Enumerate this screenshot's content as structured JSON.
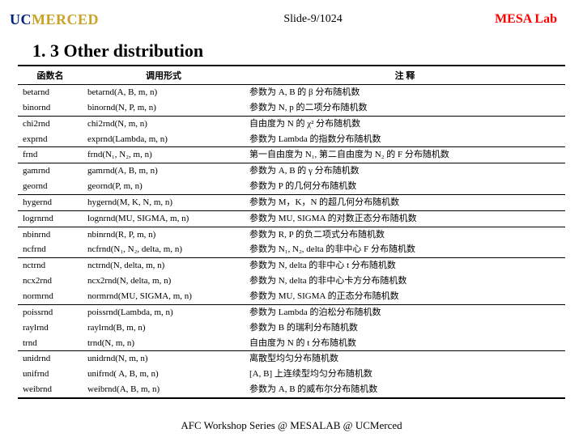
{
  "header": {
    "logo_prefix": "UC",
    "logo_suffix": "MERCED",
    "slide_counter": "Slide-9/1024",
    "lab_label": "MESA Lab"
  },
  "title": "1. 3 Other distribution",
  "table": {
    "headers": [
      "函数名",
      "调用形式",
      "注    释"
    ],
    "rows": [
      {
        "fn": "betarnd",
        "call": "betarnd(A, B, m, n)",
        "note": "参数为 A, B 的 β 分布随机数"
      },
      {
        "fn": "binornd",
        "call": "binornd(N, P, m, n)",
        "note": "参数为 N, p 的二项分布随机数",
        "div": true
      },
      {
        "fn": "chi2rnd",
        "call": "chi2rnd(N, m, n)",
        "note": "自由度为 N 的 χ² 分布随机数"
      },
      {
        "fn": "exprnd",
        "call": "exprnd(Lambda, m, n)",
        "note": "参数为 Lambda 的指数分布随机数",
        "div": true
      },
      {
        "fn": "frnd",
        "call": "frnd(N₁, N₂, m, n)",
        "note": "第一自由度为 N₁, 第二自由度为 N₂ 的 F 分布随机数",
        "div": true
      },
      {
        "fn": "gamrnd",
        "call": "gamrnd(A, B, m, n)",
        "note": "参数为 A, B 的 γ 分布随机数"
      },
      {
        "fn": "geornd",
        "call": "geornd(P, m, n)",
        "note": "参数为 P 的几何分布随机数",
        "div": true
      },
      {
        "fn": "hygernd",
        "call": "hygernd(M, K, N, m, n)",
        "note": "参数为 M，K，N 的超几何分布随机数",
        "div": true
      },
      {
        "fn": "logrnrnd",
        "call": "lognrnd(MU, SIGMA, m, n)",
        "note": "参数为 MU, SIGMA 的对数正态分布随机数",
        "div": true
      },
      {
        "fn": "nbinrnd",
        "call": "nbinrnd(R, P, m, n)",
        "note": "参数为 R, P 的负二项式分布随机数"
      },
      {
        "fn": "ncfrnd",
        "call": "ncfrnd(N₁, N₂, delta, m, n)",
        "note": "参数为 N₁, N₂, delta 的非中心 F 分布随机数",
        "div": true
      },
      {
        "fn": "nctrnd",
        "call": "nctrnd(N, delta, m, n)",
        "note": "参数为 N, delta 的非中心 t 分布随机数"
      },
      {
        "fn": "ncx2rnd",
        "call": "ncx2rnd(N, delta, m, n)",
        "note": "参数为 N, delta 的非中心卡方分布随机数"
      },
      {
        "fn": "normrnd",
        "call": "normrnd(MU, SIGMA, m, n)",
        "note": "参数为 MU, SIGMA 的正态分布随机数",
        "div": true
      },
      {
        "fn": "poissrnd",
        "call": "poissrnd(Lambda, m, n)",
        "note": "参数为 Lambda 的泊松分布随机数"
      },
      {
        "fn": "raylrnd",
        "call": "raylrnd(B, m, n)",
        "note": "参数为 B 的瑞利分布随机数"
      },
      {
        "fn": "trnd",
        "call": "trnd(N, m, n)",
        "note": "自由度为 N 的 t 分布随机数",
        "div": true
      },
      {
        "fn": "unidrnd",
        "call": "unidrnd(N, m, n)",
        "note": "离散型均匀分布随机数"
      },
      {
        "fn": "unifrnd",
        "call": "unifrnd( A, B, m, n)",
        "note": "[A, B] 上连续型均匀分布随机数"
      },
      {
        "fn": "weibrnd",
        "call": "weibrnd(A, B, m, n)",
        "note": "参数为 A, B 的威布尔分布随机数",
        "last": true
      }
    ]
  },
  "footer": "AFC Workshop Series @ MESALAB @ UCMerced"
}
